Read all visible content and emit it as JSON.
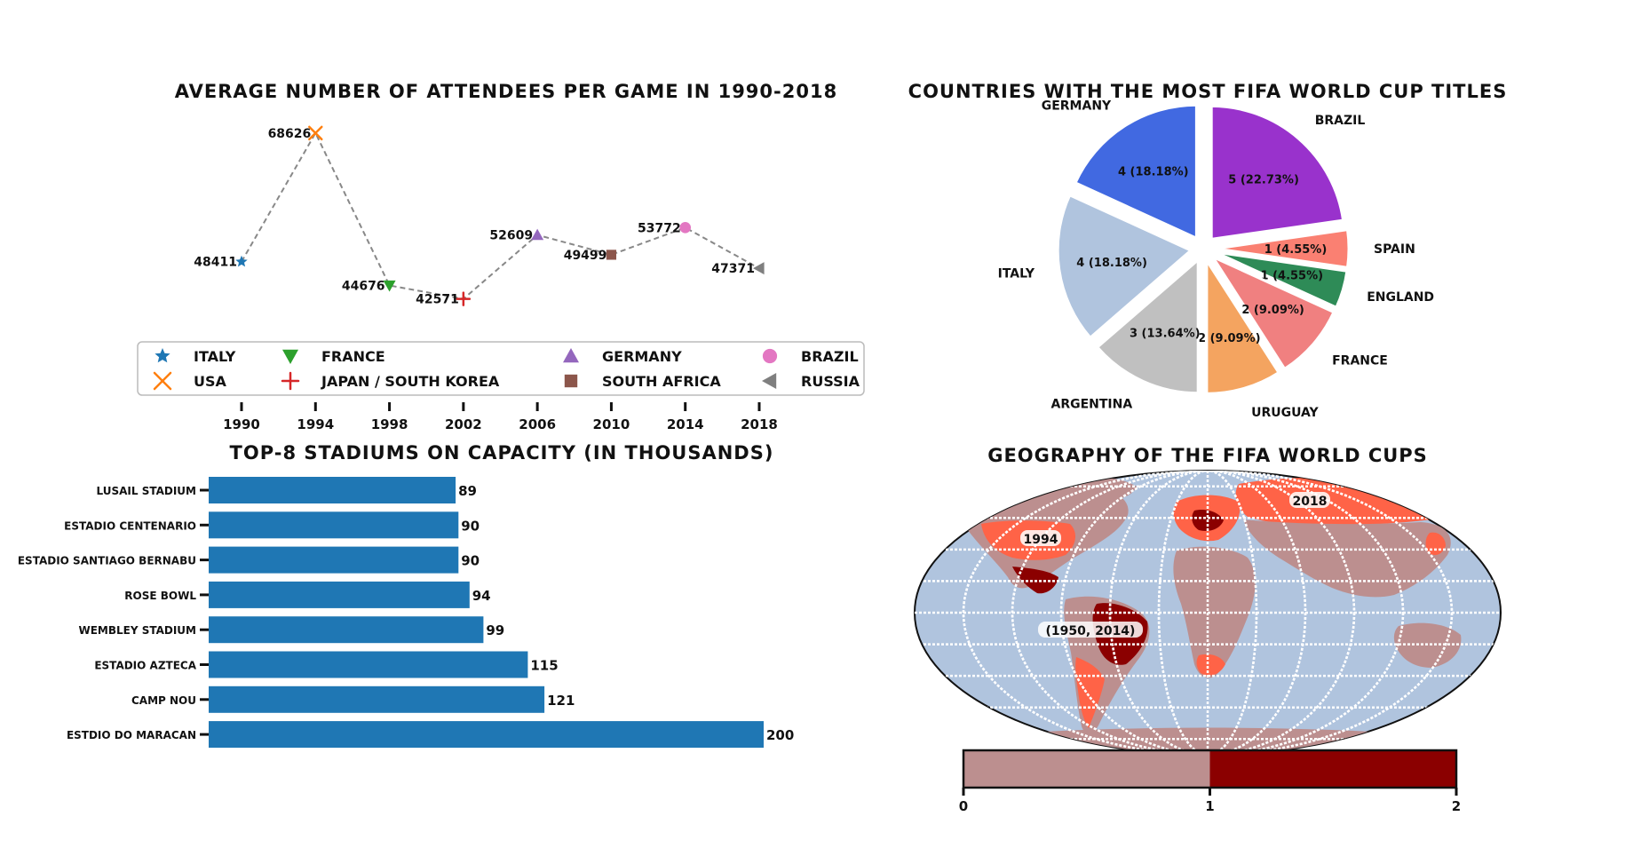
{
  "chart_data": [
    {
      "type": "line",
      "title": "AVERAGE NUMBER OF ATTENDEES PER GAME IN 1990-2018",
      "xlabel": "",
      "ylabel": "",
      "x": [
        1990,
        1994,
        1998,
        2002,
        2006,
        2010,
        2014,
        2018
      ],
      "x_labels": [
        "1990",
        "1994",
        "1998",
        "2002",
        "2006",
        "2010",
        "2014",
        "2018"
      ],
      "values": [
        48411,
        68626,
        44676,
        42571,
        52609,
        49499,
        53772,
        47371
      ],
      "value_labels": [
        "48411",
        "68626",
        "44676",
        "42571",
        "52609",
        "49499",
        "53772",
        "47371"
      ],
      "hosts": [
        "ITALY",
        "USA",
        "FRANCE",
        "JAPAN / SOUTH KOREA",
        "GERMANY",
        "SOUTH AFRICA",
        "BRAZIL",
        "RUSSIA"
      ],
      "markers": [
        "star",
        "x",
        "triangle-down",
        "plus",
        "triangle-up",
        "square",
        "circle",
        "triangle-left"
      ],
      "colors": [
        "#1f77b4",
        "#ff7f0e",
        "#2ca02c",
        "#d62728",
        "#9467bd",
        "#8c564b",
        "#e377c2",
        "#7f7f7f"
      ],
      "ylim": [
        40000,
        70000
      ],
      "line_color": "#888888",
      "line_style": "dashed",
      "legend_position": "bottom"
    },
    {
      "type": "pie",
      "title": "COUNTRIES WITH THE MOST FIFA WORLD CUP TITLES",
      "categories": [
        "BRAZIL",
        "SPAIN",
        "ENGLAND",
        "FRANCE",
        "URUGUAY",
        "ARGENTINA",
        "ITALY",
        "GERMANY"
      ],
      "values": [
        5,
        1,
        1,
        2,
        2,
        3,
        4,
        4
      ],
      "value_labels": [
        "5 (22.73%)",
        "1 (4.55%)",
        "1 (4.55%)",
        "2 (9.09%)",
        "2 (9.09%)",
        "3 (13.64%)",
        "4 (18.18%)",
        "4 (18.18%)"
      ],
      "colors": [
        "#9932cc",
        "#fa8072",
        "#2e8b57",
        "#f08080",
        "#f4a460",
        "#c0c0c0",
        "#b0c4de",
        "#4169e1"
      ],
      "exploded": true
    },
    {
      "type": "bar",
      "orientation": "horizontal",
      "title": "TOP-8 STADIUMS ON CAPACITY (IN THOUSANDS)",
      "categories": [
        "LUSAIL STADIUM",
        "ESTADIO CENTENARIO",
        "ESTADIO SANTIAGO BERNABU",
        "ROSE BOWL",
        "WEMBLEY STADIUM",
        "ESTADIO AZTECA",
        "CAMP NOU",
        "ESTDIO DO MARACAN"
      ],
      "values": [
        89,
        90,
        90,
        94,
        99,
        115,
        121,
        200
      ],
      "value_labels": [
        "89",
        "90",
        "90",
        "94",
        "99",
        "115",
        "121",
        "200"
      ],
      "color": "#1f77b4",
      "xlim": [
        0,
        200
      ]
    },
    {
      "type": "map",
      "title": "GEOGRAPHY OF THE FIFA WORLD CUPS",
      "projection": "robinson",
      "annotations": [
        "1994",
        "2018",
        "(1950, 2014)"
      ],
      "colorbar": {
        "ticks": [
          "0",
          "1",
          "2"
        ],
        "range": [
          0,
          2
        ],
        "colors": [
          "#bc8f8f",
          "#8b0000"
        ]
      },
      "ocean_color": "#b0c4de",
      "land_color": "#bc8f8f",
      "host_once_color": "#ff6347",
      "host_twice_color": "#8b0000"
    }
  ]
}
